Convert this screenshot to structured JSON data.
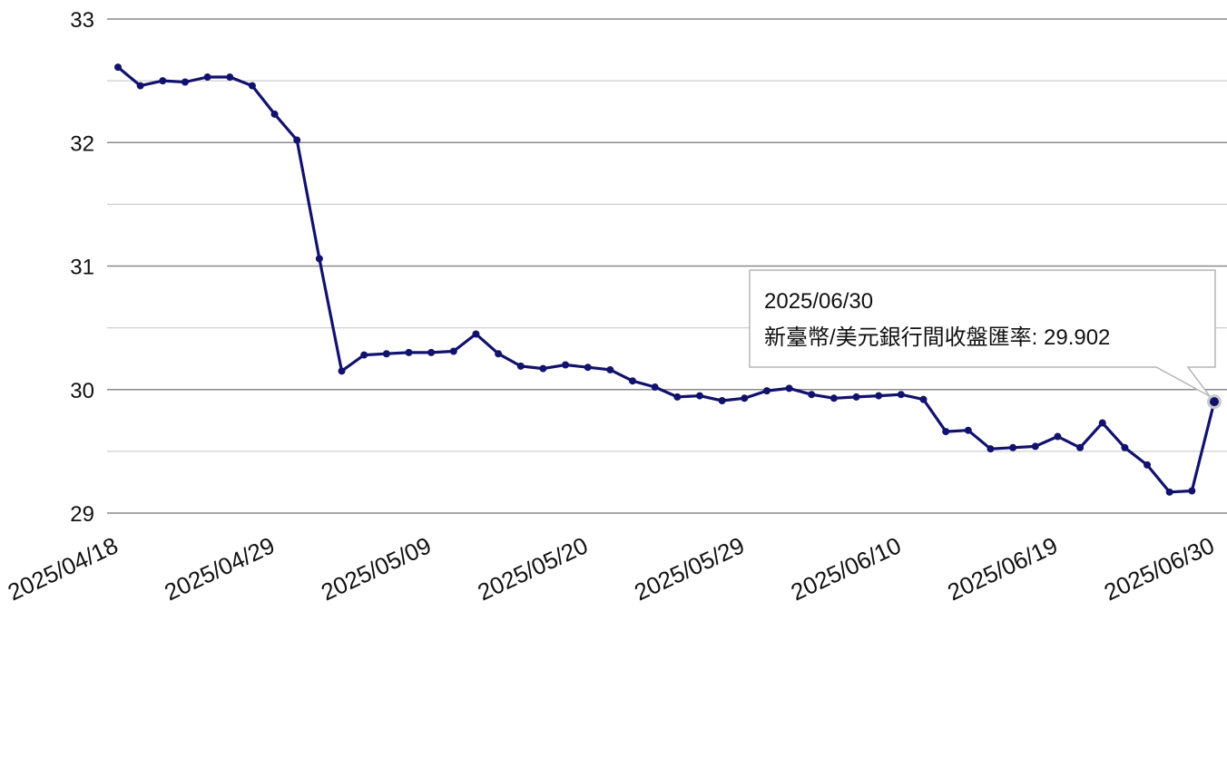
{
  "chart_data": {
    "type": "line",
    "title": "",
    "xlabel": "",
    "ylabel": "",
    "ylim": [
      29,
      33
    ],
    "yticks": [
      29,
      30,
      31,
      32,
      33
    ],
    "grid": true,
    "x_tick_labels": [
      "2025/04/18",
      "2025/04/29",
      "2025/05/09",
      "2025/05/20",
      "2025/05/29",
      "2025/06/10",
      "2025/06/19",
      "2025/06/30"
    ],
    "x": [
      "2025/04/18",
      "2025/04/21",
      "2025/04/22",
      "2025/04/23",
      "2025/04/24",
      "2025/04/25",
      "2025/04/28",
      "2025/04/29",
      "2025/04/30",
      "2025/05/02",
      "2025/05/05",
      "2025/05/06",
      "2025/05/07",
      "2025/05/08",
      "2025/05/09",
      "2025/05/12",
      "2025/05/13",
      "2025/05/14",
      "2025/05/15",
      "2025/05/16",
      "2025/05/19",
      "2025/05/20",
      "2025/05/21",
      "2025/05/22",
      "2025/05/23",
      "2025/05/26",
      "2025/05/27",
      "2025/05/28",
      "2025/05/29",
      "2025/06/02",
      "2025/06/03",
      "2025/06/04",
      "2025/06/05",
      "2025/06/06",
      "2025/06/09",
      "2025/06/10",
      "2025/06/11",
      "2025/06/12",
      "2025/06/13",
      "2025/06/16",
      "2025/06/17",
      "2025/06/18",
      "2025/06/19",
      "2025/06/20",
      "2025/06/23",
      "2025/06/24",
      "2025/06/25",
      "2025/06/26",
      "2025/06/27",
      "2025/06/30"
    ],
    "series": [
      {
        "name": "新臺幣/美元銀行間收盤匯率",
        "color": "#12126e",
        "values": [
          32.61,
          32.46,
          32.5,
          32.49,
          32.53,
          32.53,
          32.46,
          32.23,
          32.02,
          31.06,
          30.15,
          30.28,
          30.29,
          30.3,
          30.3,
          30.31,
          30.45,
          30.29,
          30.19,
          30.17,
          30.2,
          30.18,
          30.16,
          30.07,
          30.02,
          29.94,
          29.95,
          29.91,
          29.93,
          29.99,
          30.01,
          29.96,
          29.93,
          29.94,
          29.95,
          29.96,
          29.92,
          29.66,
          29.67,
          29.52,
          29.53,
          29.54,
          29.62,
          29.53,
          29.73,
          29.53,
          29.39,
          29.17,
          29.18,
          29.902
        ]
      }
    ],
    "tooltip": {
      "date": "2025/06/30",
      "label": "新臺幣/美元銀行間收盤匯率: 29.902"
    }
  }
}
